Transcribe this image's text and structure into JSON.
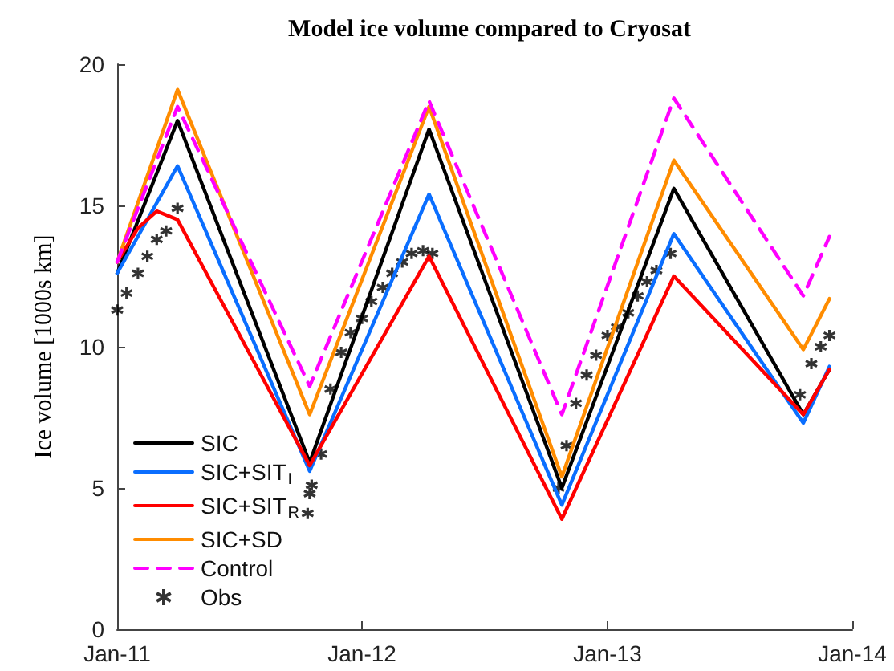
{
  "chart_data": {
    "type": "line",
    "title": "Model ice volume compared to Cryosat",
    "ylabel": "Ice volume [1000s km]",
    "xlim": [
      "2011-01-01",
      "2014-01-01"
    ],
    "xticks": [
      {
        "value": "2011-01-01",
        "label": "Jan-11"
      },
      {
        "value": "2012-01-01",
        "label": "Jan-12"
      },
      {
        "value": "2013-01-01",
        "label": "Jan-13"
      },
      {
        "value": "2014-01-01",
        "label": "Jan-14"
      }
    ],
    "ylim": [
      0,
      20
    ],
    "yticks": [
      0,
      5,
      10,
      15,
      20
    ],
    "grid": false,
    "legend": "bottom left",
    "line_style": "solid",
    "marker": "none",
    "series": [
      {
        "name": "SIC",
        "color": "#000000",
        "x": [
          "2011-01-01",
          "2011-04-01",
          "2011-10-15",
          "2012-04-10",
          "2012-10-25",
          "2013-04-10",
          "2013-10-20",
          "2013-11-28"
        ],
        "values": [
          12.6,
          18.0,
          5.9,
          17.7,
          5.0,
          15.6,
          7.6,
          9.2
        ]
      },
      {
        "name": "SIC+SIT$_{I}$",
        "color": "#0a6eff",
        "x": [
          "2011-01-01",
          "2011-04-01",
          "2011-10-15",
          "2012-04-10",
          "2012-10-25",
          "2013-04-10",
          "2013-10-20",
          "2013-11-28"
        ],
        "values": [
          12.6,
          16.4,
          5.6,
          15.4,
          4.4,
          14.0,
          7.3,
          9.3
        ]
      },
      {
        "name": "SIC+SIT$_{R}$",
        "color": "#ff0000",
        "x": [
          "2011-01-01",
          "2011-02-01",
          "2011-03-01",
          "2011-04-01",
          "2011-10-15",
          "2012-04-10",
          "2012-10-25",
          "2013-04-10",
          "2013-10-20",
          "2013-11-28"
        ],
        "values": [
          13.0,
          14.2,
          14.8,
          14.5,
          5.8,
          13.2,
          3.9,
          12.5,
          7.6,
          9.2
        ]
      },
      {
        "name": "SIC+SD",
        "color": "#ff8c00",
        "x": [
          "2011-01-01",
          "2011-04-01",
          "2011-10-15",
          "2012-04-10",
          "2012-10-25",
          "2013-04-10",
          "2013-10-20",
          "2013-11-28"
        ],
        "values": [
          13.0,
          19.1,
          7.6,
          18.5,
          5.4,
          16.6,
          9.9,
          11.7
        ]
      },
      {
        "name": "Control",
        "color": "#ff00ff",
        "line_style": "dashed",
        "x": [
          "2011-01-01",
          "2011-04-01",
          "2011-10-15",
          "2012-04-10",
          "2012-10-25",
          "2013-04-10",
          "2013-10-20",
          "2013-11-28"
        ],
        "values": [
          13.0,
          18.5,
          8.6,
          18.7,
          7.6,
          18.8,
          11.8,
          13.9
        ]
      },
      {
        "name": "Obs",
        "type": "scatter",
        "marker": "cross",
        "color": "#000000",
        "x": [
          "2011-01-01",
          "2011-01-15",
          "2011-02-01",
          "2011-02-15",
          "2011-03-01",
          "2011-03-15",
          "2011-04-01",
          "2011-10-12",
          "2011-10-15",
          "2011-10-18",
          "2011-11-01",
          "2011-11-15",
          "2011-12-01",
          "2011-12-15",
          "2012-01-01",
          "2012-01-15",
          "2012-02-01",
          "2012-02-15",
          "2012-03-01",
          "2012-03-15",
          "2012-04-01",
          "2012-04-15",
          "2012-10-20",
          "2012-11-01",
          "2012-11-15",
          "2012-12-01",
          "2012-12-15",
          "2013-01-01",
          "2013-01-15",
          "2013-02-01",
          "2013-02-15",
          "2013-03-01",
          "2013-03-15",
          "2013-04-05",
          "2013-10-15",
          "2013-11-01",
          "2013-11-15",
          "2013-11-28"
        ],
        "values": [
          11.3,
          11.9,
          12.6,
          13.2,
          13.8,
          14.1,
          14.9,
          4.1,
          4.8,
          5.1,
          6.2,
          8.5,
          9.8,
          10.5,
          11.0,
          11.6,
          12.1,
          12.6,
          13.0,
          13.3,
          13.4,
          13.3,
          5.0,
          6.5,
          8.0,
          9.0,
          9.7,
          10.4,
          10.7,
          11.2,
          11.8,
          12.3,
          12.7,
          13.3,
          8.3,
          9.4,
          10.0,
          10.4
        ]
      }
    ]
  }
}
